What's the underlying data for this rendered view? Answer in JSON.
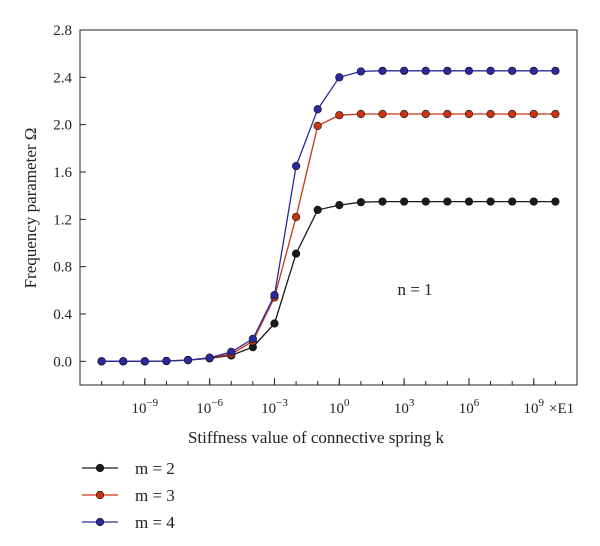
{
  "chart_data": {
    "type": "line",
    "xlabel": "Stiffness value of connective spring k",
    "ylabel": "Frequency parameter Ω",
    "x_unit": "×E1",
    "x_scale": "log10",
    "xlim": [
      -12,
      11
    ],
    "ylim": [
      -0.2,
      2.8
    ],
    "yticks": [
      "0.0",
      "0.4",
      "0.8",
      "1.2",
      "1.6",
      "2.0",
      "2.4",
      "2.8"
    ],
    "xticks": [
      "10^-9",
      "10^-6",
      "10^-3",
      "10^0",
      "10^3",
      "10^6",
      "10^9"
    ],
    "x": [
      -11,
      -10,
      -9,
      -8,
      -7,
      -6,
      -5,
      -4,
      -3,
      -2,
      -1,
      0,
      1,
      2,
      3,
      4,
      5,
      6,
      7,
      8,
      9,
      10
    ],
    "annotation": "n = 1",
    "grid": false,
    "legend_position": "below-left",
    "series": [
      {
        "name": "m = 2",
        "color": "#1a1a1a",
        "values": [
          0.0,
          0.0,
          0.0,
          0.003,
          0.01,
          0.025,
          0.05,
          0.12,
          0.32,
          0.91,
          1.28,
          1.32,
          1.345,
          1.35,
          1.35,
          1.35,
          1.35,
          1.35,
          1.35,
          1.35,
          1.35,
          1.35
        ]
      },
      {
        "name": "m = 3",
        "color": "#cc3311",
        "values": [
          0.0,
          0.0,
          0.0,
          0.003,
          0.01,
          0.03,
          0.06,
          0.17,
          0.54,
          1.22,
          1.99,
          2.08,
          2.09,
          2.09,
          2.09,
          2.09,
          2.09,
          2.09,
          2.09,
          2.09,
          2.09,
          2.09
        ]
      },
      {
        "name": "m = 4",
        "color": "#2a2aa0",
        "values": [
          0.0,
          0.0,
          0.0,
          0.003,
          0.01,
          0.03,
          0.08,
          0.19,
          0.56,
          1.65,
          2.13,
          2.4,
          2.45,
          2.455,
          2.455,
          2.455,
          2.455,
          2.455,
          2.455,
          2.455,
          2.455,
          2.455
        ]
      }
    ]
  }
}
